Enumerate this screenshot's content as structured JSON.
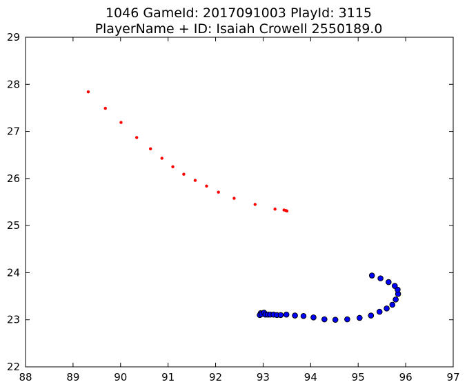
{
  "chart_data": {
    "type": "scatter",
    "title": "1046 GameId: 2017091003 PlayId: 3115",
    "subtitle": "PlayerName + ID: Isaiah Crowell 2550189.0",
    "xlabel": "",
    "ylabel": "",
    "xlim": [
      88,
      97
    ],
    "ylim": [
      22,
      29
    ],
    "xticks": [
      "88",
      "89",
      "90",
      "91",
      "92",
      "93",
      "94",
      "95",
      "96",
      "97"
    ],
    "yticks": [
      "22",
      "23",
      "24",
      "25",
      "26",
      "27",
      "28",
      "29"
    ],
    "grid": false,
    "legend": "none",
    "colors": {
      "red_series": "#ff0000",
      "blue_series": "#0000ff",
      "marker_edge": "#000000"
    },
    "series": [
      {
        "color": "red",
        "marker": "small-dot",
        "points": [
          [
            89.32,
            27.84
          ],
          [
            89.68,
            27.49
          ],
          [
            90.01,
            27.19
          ],
          [
            90.34,
            26.87
          ],
          [
            90.63,
            26.63
          ],
          [
            90.87,
            26.43
          ],
          [
            91.1,
            26.25
          ],
          [
            91.33,
            26.09
          ],
          [
            91.57,
            25.96
          ],
          [
            91.81,
            25.84
          ],
          [
            92.06,
            25.71
          ],
          [
            92.39,
            25.58
          ],
          [
            92.83,
            25.45
          ],
          [
            93.25,
            25.35
          ],
          [
            93.44,
            25.33
          ],
          [
            93.48,
            25.32
          ],
          [
            93.5,
            25.31
          ]
        ]
      },
      {
        "color": "blue",
        "marker": "circle",
        "points": [
          [
            92.95,
            23.14
          ],
          [
            92.93,
            23.1
          ],
          [
            92.97,
            23.12
          ],
          [
            93.02,
            23.15
          ],
          [
            93.05,
            23.11
          ],
          [
            93.1,
            23.11
          ],
          [
            93.15,
            23.11
          ],
          [
            93.22,
            23.11
          ],
          [
            93.29,
            23.1
          ],
          [
            93.37,
            23.1
          ],
          [
            93.49,
            23.11
          ],
          [
            93.67,
            23.09
          ],
          [
            93.85,
            23.08
          ],
          [
            94.06,
            23.05
          ],
          [
            94.29,
            23.01
          ],
          [
            94.52,
            23.0
          ],
          [
            94.77,
            23.01
          ],
          [
            95.03,
            23.04
          ],
          [
            95.27,
            23.09
          ],
          [
            95.45,
            23.17
          ],
          [
            95.6,
            23.24
          ],
          [
            95.72,
            23.32
          ],
          [
            95.79,
            23.43
          ],
          [
            95.84,
            23.55
          ],
          [
            95.83,
            23.64
          ],
          [
            95.77,
            23.72
          ],
          [
            95.64,
            23.8
          ],
          [
            95.47,
            23.88
          ],
          [
            95.29,
            23.94
          ]
        ]
      }
    ]
  }
}
